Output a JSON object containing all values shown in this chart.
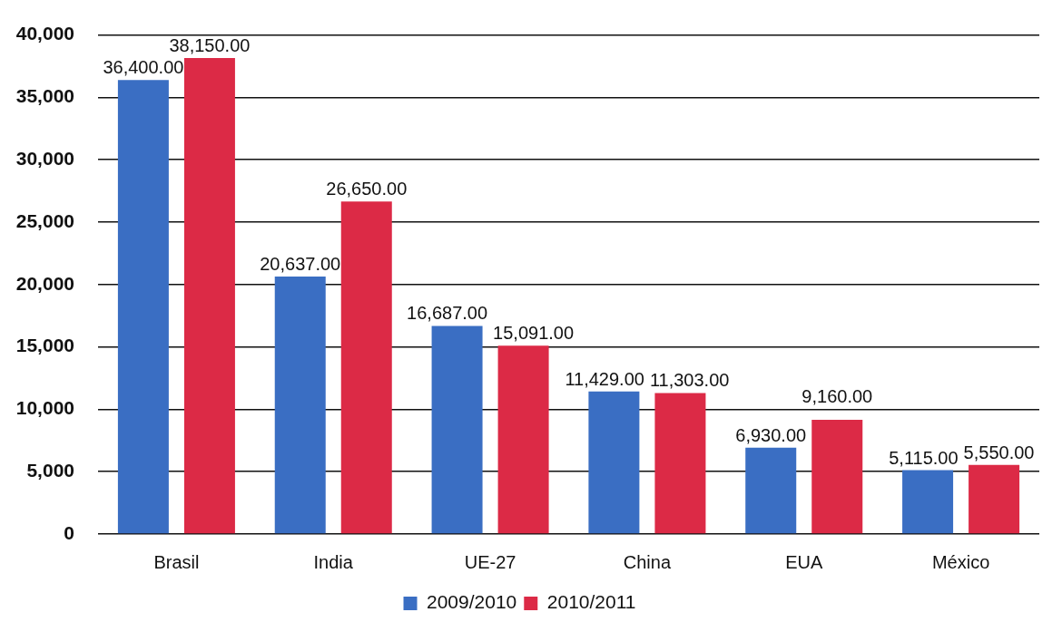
{
  "chart_data": {
    "type": "bar",
    "categories": [
      "Brasil",
      "India",
      "UE-27",
      "China",
      "EUA",
      "México"
    ],
    "series": [
      {
        "name": "2009/2010",
        "color": "#3a6ec3",
        "values": [
          36400,
          20637,
          16687,
          11429,
          6930,
          5115
        ],
        "value_labels": [
          "36,400.00",
          "20,637.00",
          "16,687.00",
          "11,429.00",
          "6,930.00",
          "5,115.00"
        ]
      },
      {
        "name": "2010/2011",
        "color": "#dc2a46",
        "values": [
          38150,
          26650,
          15091,
          11303,
          9160,
          5550
        ],
        "value_labels": [
          "38,150.00",
          "26,650.00",
          "15,091.00",
          "11,303.00",
          "9,160.00",
          "5,550.00"
        ]
      }
    ],
    "ylim": [
      0,
      40000
    ],
    "yticks": [
      0,
      {
        "value": 5000,
        "label": "5,000"
      },
      {
        "value": 10000,
        "label": "10,000"
      },
      {
        "value": 15000,
        "label": "15,000"
      },
      {
        "value": 20000,
        "label": "20,000"
      },
      {
        "value": 25000,
        "label": "25,000"
      },
      {
        "value": 30000,
        "label": "30,000"
      },
      {
        "value": 35000,
        "label": "35,000"
      },
      {
        "value": 40000,
        "label": "40,000"
      }
    ],
    "grid": "y",
    "legend": "bottom"
  }
}
